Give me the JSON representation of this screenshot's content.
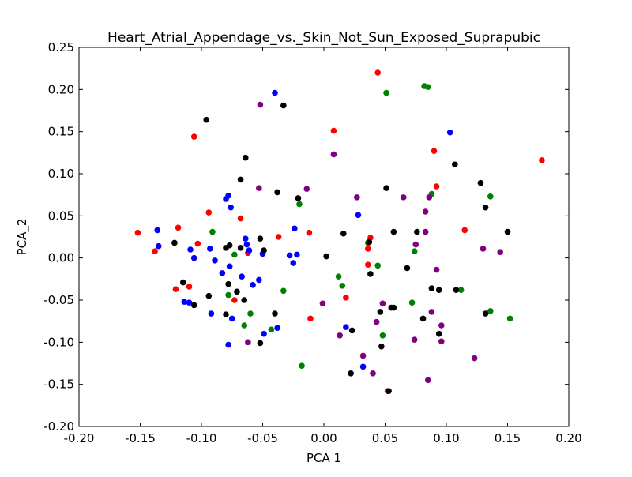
{
  "chart_data": {
    "type": "scatter",
    "title": "Heart_Atrial_Appendage_vs._Skin_Not_Sun_Exposed_Suprapubic",
    "xlabel": "PCA 1",
    "ylabel": "PCA_2",
    "xlim": [
      -0.2,
      0.2
    ],
    "ylim": [
      -0.2,
      0.25
    ],
    "xticks": [
      "-0.20",
      "-0.15",
      "-0.10",
      "-0.05",
      "0.00",
      "0.05",
      "0.10",
      "0.15",
      "0.20"
    ],
    "yticks": [
      "-0.20",
      "-0.15",
      "-0.10",
      "-0.05",
      "0.00",
      "0.05",
      "0.10",
      "0.15",
      "0.20",
      "0.25"
    ],
    "grid": false,
    "series": [
      {
        "color": "#ff0000",
        "points": [
          [
            0.044,
            0.22
          ],
          [
            0.008,
            0.151
          ],
          [
            -0.106,
            0.144
          ],
          [
            0.09,
            0.127
          ],
          [
            0.178,
            0.116
          ],
          [
            0.092,
            0.085
          ],
          [
            -0.094,
            0.054
          ],
          [
            -0.068,
            0.047
          ],
          [
            -0.119,
            0.036
          ],
          [
            -0.152,
            0.03
          ],
          [
            0.115,
            0.033
          ],
          [
            -0.012,
            0.03
          ],
          [
            -0.037,
            0.025
          ],
          [
            0.038,
            0.024
          ],
          [
            -0.103,
            0.017
          ],
          [
            -0.138,
            0.008
          ],
          [
            -0.062,
            0.006
          ],
          [
            0.036,
            0.011
          ],
          [
            0.036,
            -0.008
          ],
          [
            -0.121,
            -0.037
          ],
          [
            -0.11,
            -0.034
          ],
          [
            0.018,
            -0.047
          ],
          [
            -0.073,
            -0.05
          ],
          [
            -0.011,
            -0.072
          ],
          [
            0.052,
            -0.158
          ]
        ]
      },
      {
        "color": "#0000ff",
        "points": [
          [
            -0.04,
            0.196
          ],
          [
            0.103,
            0.149
          ],
          [
            -0.078,
            0.074
          ],
          [
            -0.08,
            0.07
          ],
          [
            -0.076,
            0.06
          ],
          [
            0.028,
            0.051
          ],
          [
            -0.136,
            0.033
          ],
          [
            -0.024,
            0.035
          ],
          [
            -0.064,
            0.023
          ],
          [
            -0.063,
            0.016
          ],
          [
            -0.135,
            0.014
          ],
          [
            -0.061,
            0.009
          ],
          [
            -0.109,
            0.01
          ],
          [
            -0.093,
            0.011
          ],
          [
            -0.05,
            0.005
          ],
          [
            -0.028,
            0.003
          ],
          [
            -0.022,
            0.004
          ],
          [
            -0.106,
            0.0
          ],
          [
            -0.089,
            -0.003
          ],
          [
            -0.025,
            -0.006
          ],
          [
            -0.077,
            -0.01
          ],
          [
            -0.067,
            -0.022
          ],
          [
            -0.083,
            -0.018
          ],
          [
            -0.053,
            -0.026
          ],
          [
            -0.058,
            -0.032
          ],
          [
            -0.114,
            -0.052
          ],
          [
            -0.11,
            -0.053
          ],
          [
            -0.092,
            -0.066
          ],
          [
            -0.075,
            -0.072
          ],
          [
            0.018,
            -0.082
          ],
          [
            -0.038,
            -0.083
          ],
          [
            -0.049,
            -0.09
          ],
          [
            -0.078,
            -0.103
          ],
          [
            0.032,
            -0.129
          ]
        ]
      },
      {
        "color": "#008000",
        "points": [
          [
            0.051,
            0.196
          ],
          [
            0.082,
            0.204
          ],
          [
            0.085,
            0.203
          ],
          [
            0.088,
            0.076
          ],
          [
            0.136,
            0.073
          ],
          [
            -0.02,
            0.064
          ],
          [
            -0.091,
            0.031
          ],
          [
            0.036,
            0.018
          ],
          [
            -0.073,
            0.004
          ],
          [
            0.074,
            0.008
          ],
          [
            0.044,
            -0.009
          ],
          [
            0.012,
            -0.022
          ],
          [
            0.015,
            -0.033
          ],
          [
            -0.033,
            -0.039
          ],
          [
            0.112,
            -0.038
          ],
          [
            -0.078,
            -0.044
          ],
          [
            0.072,
            -0.053
          ],
          [
            0.136,
            -0.063
          ],
          [
            -0.06,
            -0.066
          ],
          [
            0.152,
            -0.072
          ],
          [
            -0.065,
            -0.08
          ],
          [
            -0.043,
            -0.085
          ],
          [
            0.048,
            -0.092
          ],
          [
            -0.018,
            -0.128
          ]
        ]
      },
      {
        "color": "#800080",
        "points": [
          [
            -0.052,
            0.182
          ],
          [
            0.008,
            0.123
          ],
          [
            -0.053,
            0.083
          ],
          [
            -0.014,
            0.082
          ],
          [
            0.027,
            0.072
          ],
          [
            0.065,
            0.072
          ],
          [
            0.086,
            0.072
          ],
          [
            0.083,
            0.055
          ],
          [
            0.083,
            0.031
          ],
          [
            0.075,
            0.016
          ],
          [
            0.13,
            0.011
          ],
          [
            0.144,
            0.007
          ],
          [
            0.092,
            -0.014
          ],
          [
            -0.001,
            -0.054
          ],
          [
            0.048,
            -0.054
          ],
          [
            0.088,
            -0.064
          ],
          [
            0.043,
            -0.076
          ],
          [
            0.096,
            -0.08
          ],
          [
            0.013,
            -0.092
          ],
          [
            0.074,
            -0.097
          ],
          [
            0.096,
            -0.099
          ],
          [
            -0.062,
            -0.1
          ],
          [
            0.032,
            -0.116
          ],
          [
            0.123,
            -0.119
          ],
          [
            0.04,
            -0.137
          ],
          [
            0.085,
            -0.145
          ]
        ]
      },
      {
        "color": "#000000",
        "points": [
          [
            -0.096,
            0.164
          ],
          [
            -0.033,
            0.181
          ],
          [
            -0.064,
            0.119
          ],
          [
            0.107,
            0.111
          ],
          [
            -0.068,
            0.093
          ],
          [
            0.128,
            0.089
          ],
          [
            0.051,
            0.083
          ],
          [
            -0.038,
            0.078
          ],
          [
            -0.021,
            0.071
          ],
          [
            0.132,
            0.06
          ],
          [
            0.057,
            0.031
          ],
          [
            0.076,
            0.031
          ],
          [
            0.15,
            0.031
          ],
          [
            0.016,
            0.029
          ],
          [
            -0.077,
            0.015
          ],
          [
            -0.122,
            0.018
          ],
          [
            -0.08,
            0.012
          ],
          [
            -0.052,
            0.023
          ],
          [
            -0.049,
            0.009
          ],
          [
            0.037,
            0.019
          ],
          [
            0.002,
            0.002
          ],
          [
            -0.068,
            0.012
          ],
          [
            0.068,
            -0.012
          ],
          [
            0.038,
            -0.019
          ],
          [
            -0.115,
            -0.029
          ],
          [
            -0.078,
            -0.031
          ],
          [
            0.088,
            -0.036
          ],
          [
            -0.071,
            -0.04
          ],
          [
            0.094,
            -0.038
          ],
          [
            0.108,
            -0.038
          ],
          [
            -0.094,
            -0.045
          ],
          [
            -0.065,
            -0.05
          ],
          [
            -0.106,
            -0.056
          ],
          [
            0.055,
            -0.059
          ],
          [
            0.057,
            -0.059
          ],
          [
            0.046,
            -0.064
          ],
          [
            0.132,
            -0.066
          ],
          [
            -0.04,
            -0.066
          ],
          [
            -0.08,
            -0.067
          ],
          [
            0.081,
            -0.072
          ],
          [
            0.023,
            -0.086
          ],
          [
            0.094,
            -0.09
          ],
          [
            -0.052,
            -0.101
          ],
          [
            0.047,
            -0.105
          ],
          [
            0.022,
            -0.137
          ],
          [
            0.053,
            -0.158
          ]
        ]
      }
    ]
  }
}
